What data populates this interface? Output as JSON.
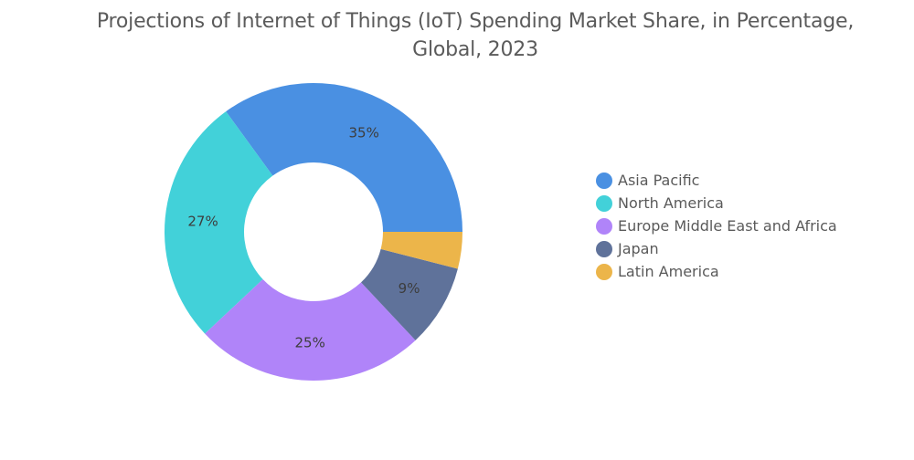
{
  "chart_data": {
    "type": "pie",
    "style": "donut",
    "title_lines": [
      "Projections of Internet of Things (IoT) Spending Market Share, in Percentage,",
      "Global, 2023"
    ],
    "categories": [
      "Asia Pacific",
      "North America",
      "Europe Middle East and Africa",
      "Japan",
      "Latin America"
    ],
    "values": [
      35,
      27,
      25,
      9,
      4
    ],
    "data_labels": [
      "35%",
      "27%",
      "25%",
      "9%",
      ""
    ],
    "unit": "%",
    "colors": [
      "#4a90e2",
      "#42d1d9",
      "#b084f9",
      "#5f729a",
      "#ecb54a"
    ],
    "legend_placement": "right"
  }
}
